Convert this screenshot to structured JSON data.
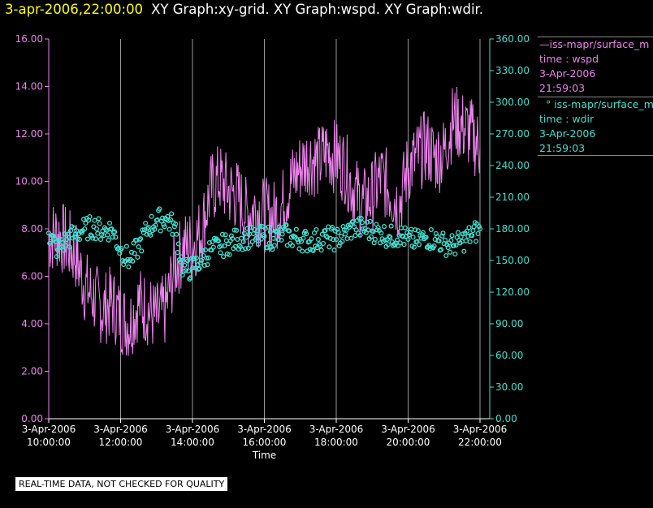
{
  "header": {
    "time": "3-apr-2006,22:00:00",
    "title": "XY Graph:xy-grid.  XY Graph:wspd.  XY Graph:wdir."
  },
  "disclaimer": "REAL-TIME DATA, NOT CHECKED FOR QUALITY",
  "legend": {
    "wspd": {
      "name": "iss-mapr/surface_m",
      "field": "time : wspd",
      "date": "3-Apr-2006",
      "time": "21:59:03",
      "color": "#ee82ee"
    },
    "wdir": {
      "name": "iss-mapr/surface_m",
      "field": "time : wdir",
      "date": "3-Apr-2006",
      "time": "21:59:03",
      "color": "#40e0d0"
    }
  },
  "chart_data": {
    "type": "line",
    "xlabel": "Time",
    "x_ticks": [
      {
        "date": "3-Apr-2006",
        "time": "10:00:00"
      },
      {
        "date": "3-Apr-2006",
        "time": "12:00:00"
      },
      {
        "date": "3-Apr-2006",
        "time": "14:00:00"
      },
      {
        "date": "3-Apr-2006",
        "time": "16:00:00"
      },
      {
        "date": "3-Apr-2006",
        "time": "18:00:00"
      },
      {
        "date": "3-Apr-2006",
        "time": "20:00:00"
      },
      {
        "date": "3-Apr-2006",
        "time": "22:00:00"
      }
    ],
    "xlim_hours": [
      10,
      22
    ],
    "y_left": {
      "ylim": [
        0,
        16
      ],
      "ticks": [
        "0.00",
        "2.00",
        "4.00",
        "6.00",
        "8.00",
        "10.00",
        "12.00",
        "14.00",
        "16.00"
      ]
    },
    "y_right": {
      "ylim": [
        0,
        360
      ],
      "ticks": [
        "0.00",
        "30.00",
        "60.00",
        "90.00",
        "120.00",
        "150.00",
        "180.00",
        "210.00",
        "240.00",
        "270.00",
        "300.00",
        "330.00",
        "360.00"
      ]
    },
    "grid": "vertical",
    "series": [
      {
        "name": "iss-mapr/surface_m time : wspd",
        "axis": "left",
        "style": "line",
        "color": "#ee82ee",
        "points": [
          [
            10.0,
            7.6
          ],
          [
            10.25,
            7.8
          ],
          [
            10.5,
            7.4
          ],
          [
            10.75,
            6.9
          ],
          [
            11.0,
            5.6
          ],
          [
            11.25,
            5.1
          ],
          [
            11.5,
            4.6
          ],
          [
            11.75,
            4.9
          ],
          [
            12.0,
            4.3
          ],
          [
            12.25,
            4.0
          ],
          [
            12.5,
            4.9
          ],
          [
            12.75,
            4.6
          ],
          [
            13.0,
            4.2
          ],
          [
            13.25,
            4.6
          ],
          [
            13.5,
            6.4
          ],
          [
            13.75,
            7.2
          ],
          [
            14.0,
            7.3
          ],
          [
            14.25,
            7.9
          ],
          [
            14.5,
            9.6
          ],
          [
            14.75,
            10.1
          ],
          [
            15.0,
            9.6
          ],
          [
            15.25,
            9.4
          ],
          [
            15.5,
            8.6
          ],
          [
            15.75,
            8.9
          ],
          [
            16.0,
            8.6
          ],
          [
            16.25,
            8.5
          ],
          [
            16.5,
            9.0
          ],
          [
            16.75,
            10.0
          ],
          [
            17.0,
            10.6
          ],
          [
            17.25,
            11.0
          ],
          [
            17.5,
            10.8
          ],
          [
            17.75,
            11.3
          ],
          [
            18.0,
            11.0
          ],
          [
            18.25,
            10.6
          ],
          [
            18.5,
            9.6
          ],
          [
            18.75,
            9.0
          ],
          [
            19.0,
            9.4
          ],
          [
            19.25,
            10.2
          ],
          [
            19.5,
            9.6
          ],
          [
            19.75,
            9.0
          ],
          [
            20.0,
            10.6
          ],
          [
            20.25,
            11.0
          ],
          [
            20.5,
            11.5
          ],
          [
            20.75,
            11.0
          ],
          [
            21.0,
            11.2
          ],
          [
            21.25,
            12.6
          ],
          [
            21.5,
            12.3
          ],
          [
            21.75,
            12.0
          ],
          [
            22.0,
            11.4
          ]
        ]
      },
      {
        "name": "iss-mapr/surface_m time : wdir",
        "axis": "right",
        "style": "points",
        "color": "#40e0d0",
        "points": [
          [
            10.0,
            176
          ],
          [
            10.25,
            160
          ],
          [
            10.5,
            170
          ],
          [
            10.75,
            175
          ],
          [
            11.0,
            180
          ],
          [
            11.25,
            182
          ],
          [
            11.5,
            178
          ],
          [
            11.75,
            180
          ],
          [
            12.0,
            160
          ],
          [
            12.25,
            150
          ],
          [
            12.5,
            163
          ],
          [
            12.75,
            180
          ],
          [
            13.0,
            188
          ],
          [
            13.25,
            190
          ],
          [
            13.5,
            182
          ],
          [
            13.75,
            140
          ],
          [
            14.0,
            143
          ],
          [
            14.25,
            150
          ],
          [
            14.5,
            160
          ],
          [
            14.75,
            163
          ],
          [
            15.0,
            166
          ],
          [
            15.25,
            170
          ],
          [
            15.5,
            172
          ],
          [
            15.75,
            170
          ],
          [
            16.0,
            173
          ],
          [
            16.25,
            171
          ],
          [
            16.5,
            175
          ],
          [
            16.75,
            172
          ],
          [
            17.0,
            170
          ],
          [
            17.25,
            168
          ],
          [
            17.5,
            170
          ],
          [
            17.75,
            172
          ],
          [
            18.0,
            170
          ],
          [
            18.25,
            175
          ],
          [
            18.5,
            182
          ],
          [
            18.75,
            180
          ],
          [
            19.0,
            178
          ],
          [
            19.25,
            176
          ],
          [
            19.5,
            172
          ],
          [
            19.75,
            174
          ],
          [
            20.0,
            170
          ],
          [
            20.25,
            168
          ],
          [
            20.5,
            172
          ],
          [
            20.75,
            170
          ],
          [
            21.0,
            166
          ],
          [
            21.25,
            164
          ],
          [
            21.5,
            168
          ],
          [
            21.75,
            174
          ],
          [
            22.0,
            180
          ]
        ]
      }
    ]
  }
}
